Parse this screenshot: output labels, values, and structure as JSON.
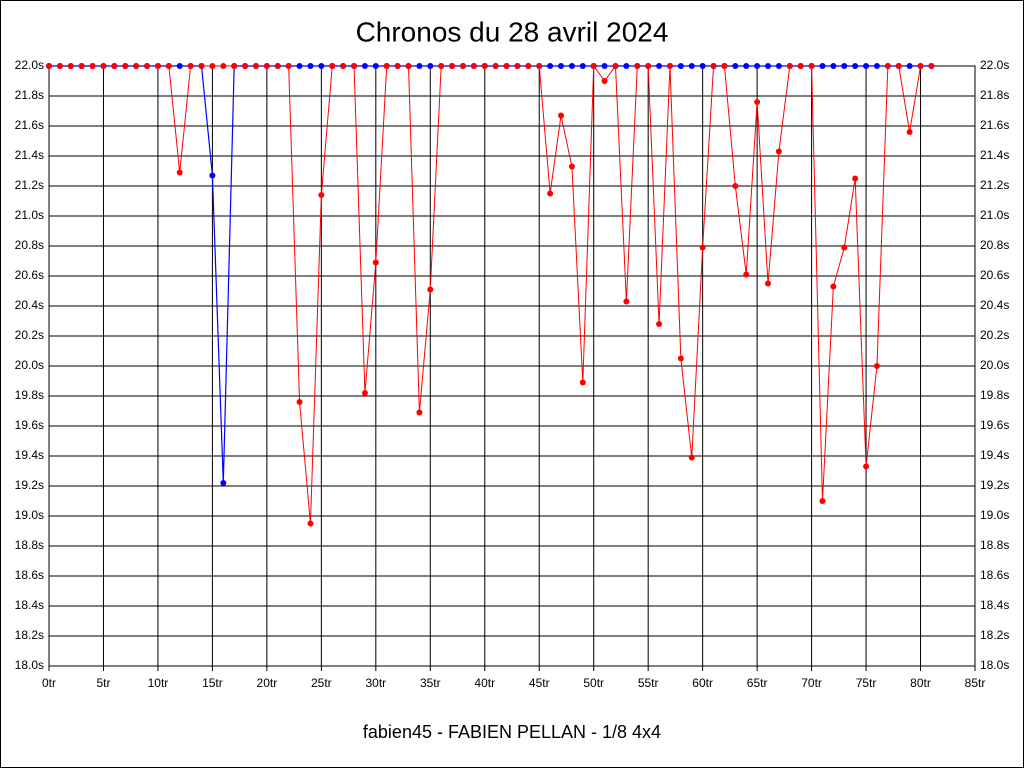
{
  "chart_data": {
    "type": "line",
    "title": "Chronos du 28 avril 2024",
    "subtitle": "fabien45 - FABIEN PELLAN - 1/8 4x4",
    "x": [
      0,
      1,
      2,
      3,
      4,
      5,
      6,
      7,
      8,
      9,
      10,
      11,
      12,
      13,
      14,
      15,
      16,
      17,
      18,
      19,
      20,
      21,
      22,
      23,
      24,
      25,
      26,
      27,
      28,
      29,
      30,
      31,
      32,
      33,
      34,
      35,
      36,
      37,
      38,
      39,
      40,
      41,
      42,
      43,
      44,
      45,
      46,
      47,
      48,
      49,
      50,
      51,
      52,
      53,
      54,
      55,
      56,
      57,
      58,
      59,
      60,
      61,
      62,
      63,
      64,
      65,
      66,
      67,
      68,
      69,
      70,
      71,
      72,
      73,
      74,
      75,
      76,
      77,
      78,
      79,
      80,
      81
    ],
    "series": [
      {
        "color": "#ff0000",
        "values": [
          22,
          22,
          22,
          22,
          22,
          22,
          22,
          22,
          22,
          22,
          22,
          22,
          21.29,
          22,
          22,
          22,
          22,
          22,
          22,
          22,
          22,
          22,
          22,
          19.76,
          18.95,
          21.14,
          22,
          22,
          22,
          19.82,
          20.69,
          22,
          22,
          22,
          19.69,
          20.51,
          22,
          22,
          22,
          22,
          22,
          22,
          22,
          22,
          22,
          22,
          21.15,
          21.67,
          21.33,
          19.89,
          22,
          21.9,
          22,
          20.43,
          22,
          22,
          20.28,
          22,
          20.05,
          19.39,
          20.79,
          22,
          22,
          21.2,
          20.61,
          21.76,
          20.55,
          21.43,
          22,
          22,
          22,
          19.1,
          20.53,
          20.79,
          21.25,
          19.33,
          20.0,
          22,
          22,
          21.56,
          22,
          22
        ]
      },
      {
        "color": "#0000ff",
        "values": [
          22,
          22,
          22,
          22,
          22,
          22,
          22,
          22,
          22,
          22,
          22,
          22,
          22,
          22,
          22,
          21.27,
          19.22,
          22,
          22,
          22,
          22,
          22,
          22,
          22,
          22,
          22,
          22,
          22,
          22,
          22,
          22,
          22,
          22,
          22,
          22,
          22,
          22,
          22,
          22,
          22,
          22,
          22,
          22,
          22,
          22,
          22,
          22,
          22,
          22,
          22,
          22,
          22,
          22,
          22,
          22,
          22,
          22,
          22,
          22,
          22,
          22,
          22,
          22,
          22,
          22,
          22,
          22,
          22,
          22,
          22,
          22,
          22,
          22,
          22,
          22,
          22,
          22,
          22,
          22,
          22,
          22,
          22
        ]
      }
    ],
    "xlim": [
      0,
      85
    ],
    "xticks": [
      {
        "value": 0,
        "label": "0tr"
      },
      {
        "value": 5,
        "label": "5tr"
      },
      {
        "value": 10,
        "label": "10tr"
      },
      {
        "value": 15,
        "label": "15tr"
      },
      {
        "value": 20,
        "label": "20tr"
      },
      {
        "value": 25,
        "label": "25tr"
      },
      {
        "value": 30,
        "label": "30tr"
      },
      {
        "value": 35,
        "label": "35tr"
      },
      {
        "value": 40,
        "label": "40tr"
      },
      {
        "value": 45,
        "label": "45tr"
      },
      {
        "value": 50,
        "label": "50tr"
      },
      {
        "value": 55,
        "label": "55tr"
      },
      {
        "value": 60,
        "label": "60tr"
      },
      {
        "value": 65,
        "label": "65tr"
      },
      {
        "value": 70,
        "label": "70tr"
      },
      {
        "value": 75,
        "label": "75tr"
      },
      {
        "value": 80,
        "label": "80tr"
      },
      {
        "value": 85,
        "label": "85tr"
      }
    ],
    "ylim": [
      18,
      22
    ],
    "yticks": [
      {
        "value": 18,
        "label": "18.0s"
      },
      {
        "value": 18.2,
        "label": "18.2s"
      },
      {
        "value": 18.4,
        "label": "18.4s"
      },
      {
        "value": 18.6,
        "label": "18.6s"
      },
      {
        "value": 18.8,
        "label": "18.8s"
      },
      {
        "value": 19,
        "label": "19.0s"
      },
      {
        "value": 19.2,
        "label": "19.2s"
      },
      {
        "value": 19.4,
        "label": "19.4s"
      },
      {
        "value": 19.6,
        "label": "19.6s"
      },
      {
        "value": 19.8,
        "label": "19.8s"
      },
      {
        "value": 20,
        "label": "20.0s"
      },
      {
        "value": 20.2,
        "label": "20.2s"
      },
      {
        "value": 20.4,
        "label": "20.4s"
      },
      {
        "value": 20.6,
        "label": "20.6s"
      },
      {
        "value": 20.8,
        "label": "20.8s"
      },
      {
        "value": 21,
        "label": "21.0s"
      },
      {
        "value": 21.2,
        "label": "21.2s"
      },
      {
        "value": 21.4,
        "label": "21.4s"
      },
      {
        "value": 21.6,
        "label": "21.6s"
      },
      {
        "value": 21.8,
        "label": "21.8s"
      },
      {
        "value": 22,
        "label": "22.0s"
      }
    ],
    "grid": true
  }
}
